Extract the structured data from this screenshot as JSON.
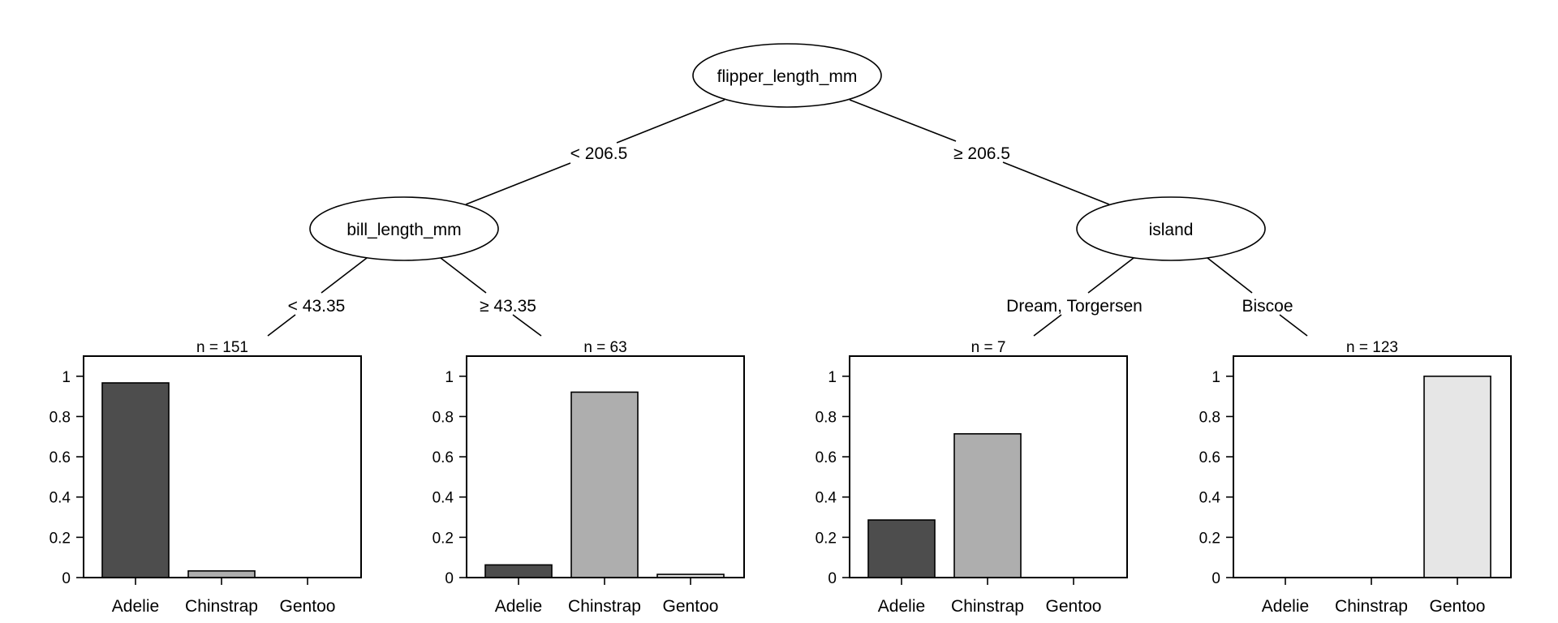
{
  "inner_nodes": {
    "root": {
      "label": "flipper_length_mm"
    },
    "left": {
      "label": "bill_length_mm"
    },
    "right": {
      "label": "island"
    }
  },
  "edges": {
    "root_left": "< 206.5",
    "root_right": "≥ 206.5",
    "left_left": "< 43.35",
    "left_right": "≥ 43.35",
    "right_left": "Dream, Torgersen",
    "right_right": "Biscoe"
  },
  "chart_data": {
    "type": "bar",
    "categories": [
      "Adelie",
      "Chinstrap",
      "Gentoo"
    ],
    "category_colors": [
      "#4d4d4d",
      "#aeaeae",
      "#e6e6e6"
    ],
    "y_ticks": [
      "0",
      "0.2",
      "0.4",
      "0.6",
      "0.8",
      "1"
    ],
    "ylim": [
      0,
      1.1
    ],
    "panels": [
      {
        "n_label": "n = 151",
        "values": [
          0.967,
          0.033,
          0.0
        ]
      },
      {
        "n_label": "n = 63",
        "values": [
          0.063,
          0.921,
          0.016
        ]
      },
      {
        "n_label": "n = 7",
        "values": [
          0.286,
          0.714,
          0.0
        ]
      },
      {
        "n_label": "n = 123",
        "values": [
          0.0,
          0.0,
          1.0
        ]
      }
    ]
  }
}
